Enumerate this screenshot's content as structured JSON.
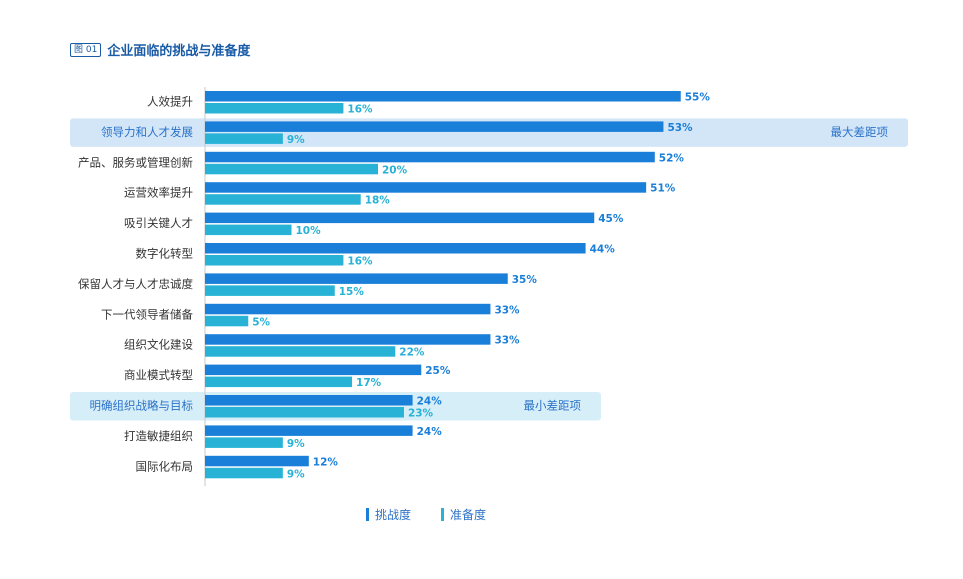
{
  "title": {
    "badge": "图 01",
    "text": "企业面临的挑战与准备度"
  },
  "colors": {
    "challenge": "#1a7fd9",
    "readiness": "#27b2d6",
    "highlight_max": "#d2e6f8",
    "highlight_min": "#d6eef7",
    "annotation_text": "#2b72c8",
    "category_text": "#333333"
  },
  "chart_data": {
    "type": "bar",
    "orientation": "horizontal",
    "categories": [
      "人效提升",
      "领导力和人才发展",
      "产品、服务或管理创新",
      "运营效率提升",
      "吸引关键人才",
      "数字化转型",
      "保留人才与人才忠诚度",
      "下一代领导者储备",
      "组织文化建设",
      "商业模式转型",
      "明确组织战略与目标",
      "打造敏捷组织",
      "国际化布局"
    ],
    "series": [
      {
        "name": "挑战度",
        "values": [
          55,
          53,
          52,
          51,
          45,
          44,
          35,
          33,
          33,
          25,
          24,
          24,
          12
        ]
      },
      {
        "name": "准备度",
        "values": [
          16,
          9,
          20,
          18,
          10,
          16,
          15,
          5,
          22,
          17,
          23,
          9,
          9
        ]
      }
    ],
    "value_suffix": "%",
    "xlim": [
      0,
      55
    ],
    "legend_position": "bottom",
    "highlights": [
      {
        "category": "领导力和人才发展",
        "label": "最大差距项"
      },
      {
        "category": "明确组织战略与目标",
        "label": "最小差距项"
      }
    ]
  }
}
